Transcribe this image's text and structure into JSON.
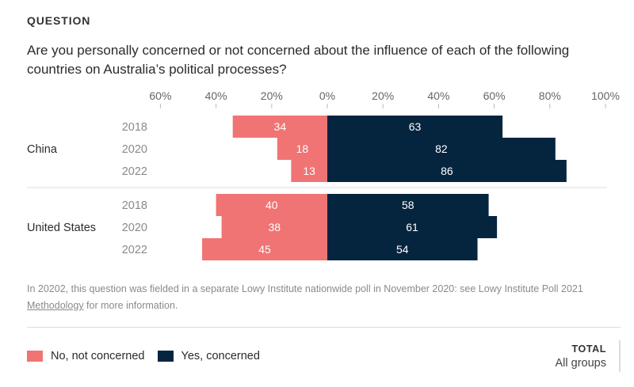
{
  "header": {
    "kicker": "QUESTION",
    "question": "Are you personally concerned or not concerned about the influence of each of the following countries on Australia’s political processes?"
  },
  "chart_data": {
    "type": "bar",
    "orientation": "horizontal-diverging",
    "axis_ticks": [
      "60%",
      "40%",
      "20%",
      "0%",
      "20%",
      "40%",
      "60%",
      "80%",
      "100%"
    ],
    "xlim": [
      -60,
      100
    ],
    "groups": [
      {
        "name": "China",
        "years": [
          "2018",
          "2020",
          "2022"
        ],
        "no": [
          34,
          18,
          13
        ],
        "yes": [
          63,
          82,
          86
        ]
      },
      {
        "name": "United States",
        "years": [
          "2018",
          "2020",
          "2022"
        ],
        "no": [
          40,
          38,
          45
        ],
        "yes": [
          58,
          61,
          54
        ]
      }
    ],
    "series": [
      {
        "name": "No, not concerned",
        "color": "#f07474"
      },
      {
        "name": "Yes, concerned",
        "color": "#05253f"
      }
    ],
    "legend_position": "bottom-left"
  },
  "note": {
    "text_before": "In 20202, this question was fielded in a separate Lowy Institute nationwide poll in November 2020: see Lowy Institute Poll 2021 ",
    "link": "Methodology",
    "text_after": " for more information."
  },
  "legend": {
    "no_label": "No, not concerned",
    "yes_label": "Yes, concerned"
  },
  "total": {
    "title": "TOTAL",
    "value": "All groups"
  }
}
